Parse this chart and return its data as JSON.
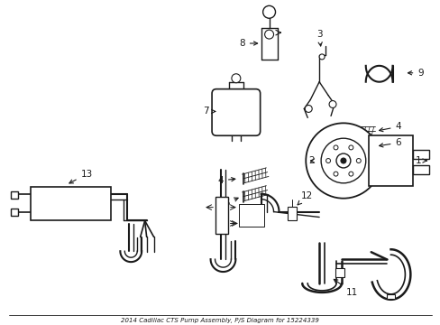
{
  "title": "2014 Cadillac CTS Pump Assembly, P/S Diagram for 15224339",
  "background_color": "#ffffff",
  "line_color": "#1a1a1a",
  "fig_width": 4.89,
  "fig_height": 3.6,
  "dpi": 100
}
